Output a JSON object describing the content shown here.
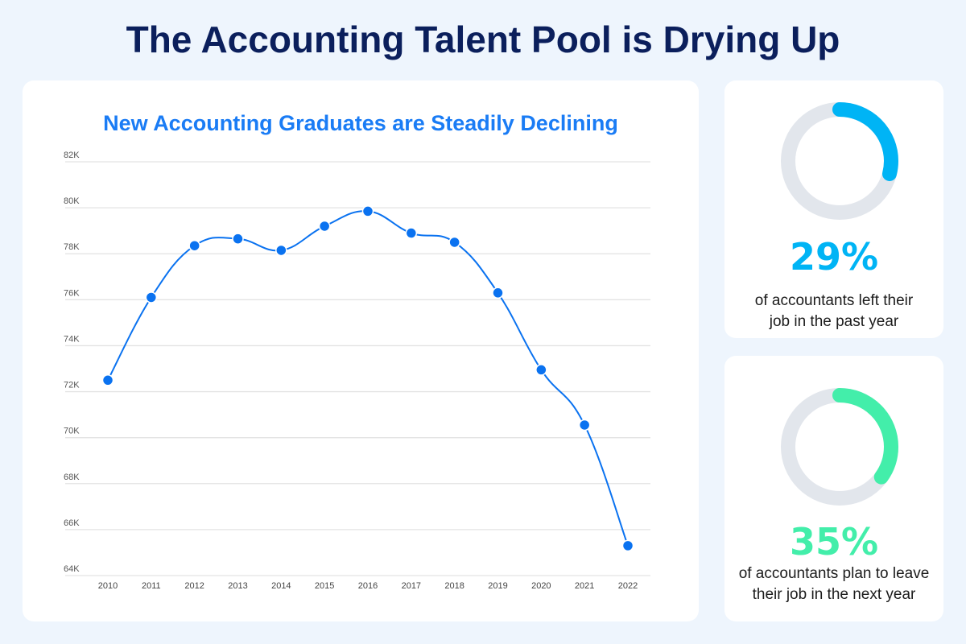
{
  "title": "The Accounting Talent Pool is Drying Up",
  "chart_data": {
    "type": "line",
    "title": "New Accounting Graduates are Steadily Declining",
    "xlabel": "",
    "ylabel": "",
    "categories": [
      "2010",
      "2011",
      "2012",
      "2013",
      "2014",
      "2015",
      "2016",
      "2017",
      "2018",
      "2019",
      "2020",
      "2021",
      "2022"
    ],
    "values": [
      72500,
      76100,
      78350,
      78650,
      78150,
      79200,
      79850,
      78900,
      78500,
      76300,
      72950,
      70550,
      65300
    ],
    "ylim": [
      64000,
      82000
    ],
    "yticks": [
      64000,
      66000,
      68000,
      70000,
      72000,
      74000,
      76000,
      78000,
      80000,
      82000
    ],
    "ytick_labels": [
      "64K",
      "66K",
      "68K",
      "70K",
      "72K",
      "74K",
      "76K",
      "78K",
      "80K",
      "82K"
    ],
    "grid": true,
    "smooth": true,
    "color": "#0a72f0"
  },
  "stats": [
    {
      "value": 29,
      "label": "29%",
      "desc_line1": "of accountants left their",
      "desc_line2": "job in the past year",
      "color": "#00b4f5"
    },
    {
      "value": 35,
      "label": "35%",
      "desc_line1": "of accountants plan to leave",
      "desc_line2": "their job in the next year",
      "color": "#43eeaa"
    }
  ],
  "ring_track_color": "#e2e6ec"
}
